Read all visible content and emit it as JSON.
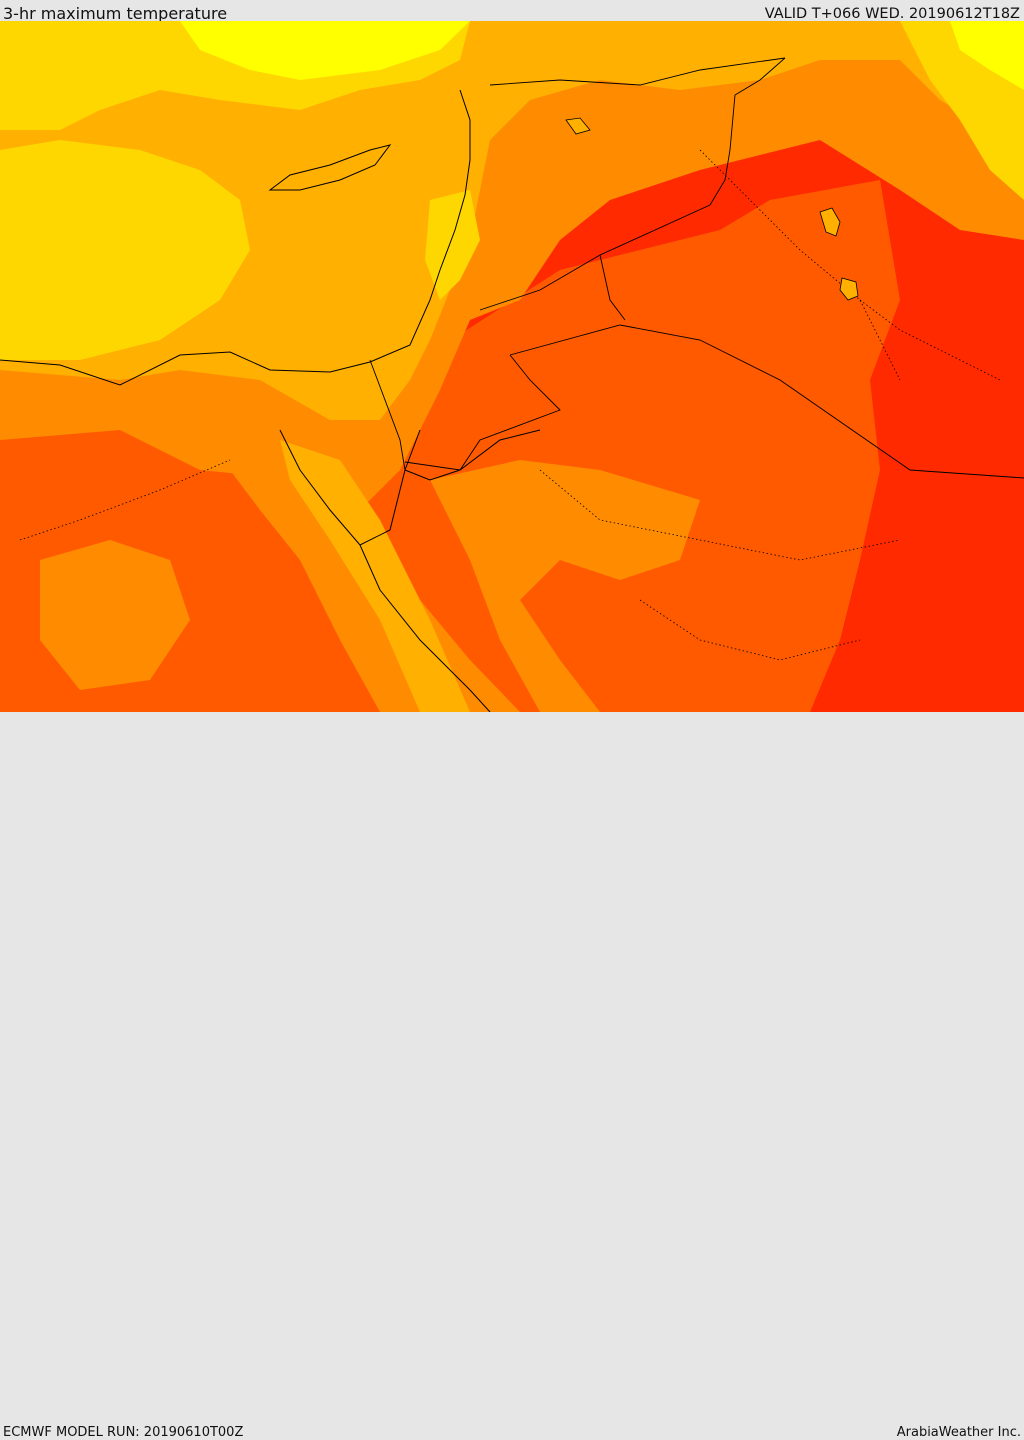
{
  "header": {
    "title": "3-hr maximum temperature",
    "valid": "VALID T+066 WED. 20190612T18Z"
  },
  "footer": {
    "model_run": "ECMWF MODEL RUN: 20190610T00Z",
    "credit": "ArabiaWeather Inc."
  },
  "colors": {
    "level_1": "#ffff00",
    "level_2": "#ffd700",
    "level_3": "#ffb000",
    "level_4": "#ff8c00",
    "level_5": "#ff5a00",
    "level_6": "#ff2a00",
    "level_7": "#ff0000",
    "coastline": "#000000"
  }
}
